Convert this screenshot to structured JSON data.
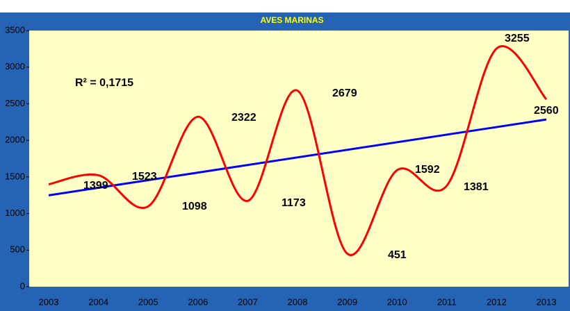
{
  "chart_data": {
    "type": "line",
    "title": "AVES MARINAS",
    "categories": [
      "2003",
      "2004",
      "2005",
      "2006",
      "2007",
      "2008",
      "2009",
      "2010",
      "2011",
      "2012",
      "2013"
    ],
    "series": [
      {
        "name": "Aves marinas",
        "color": "#ff0000",
        "values": [
          1399,
          1523,
          1098,
          2322,
          1173,
          2679,
          451,
          1592,
          1381,
          3255,
          2560
        ]
      }
    ],
    "trendline": {
      "color": "#0000ff",
      "label": "R² = 0,1715"
    },
    "ylim": [
      0,
      3500
    ],
    "yticks": [
      0,
      500,
      1000,
      1500,
      2000,
      2500,
      3000,
      3500
    ],
    "grid": false,
    "background": "#2563b4",
    "plot_background": "#ffffc6"
  }
}
